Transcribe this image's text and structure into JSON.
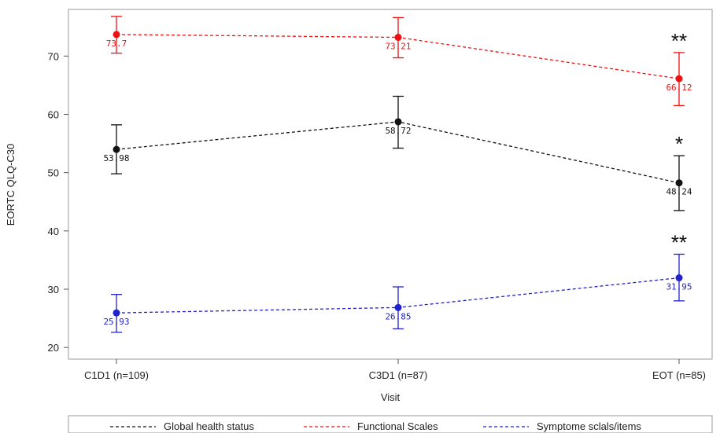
{
  "chart_data": {
    "type": "line",
    "xlabel": "Visit",
    "ylabel": "EORTC QLQ-C30",
    "categories": [
      "C1D1  (n=109)",
      "C3D1  (n=87)",
      "EOT  (n=85)"
    ],
    "ylim": [
      18,
      78
    ],
    "yticks": [
      20,
      30,
      40,
      50,
      60,
      70
    ],
    "grid": false,
    "legend_position": "bottom",
    "series": [
      {
        "name": "Global health status",
        "color": "#111111",
        "values": [
          53.98,
          58.72,
          48.24
        ],
        "labels": [
          "53.98",
          "58.72",
          "48.24"
        ],
        "ci_low": [
          49.8,
          54.2,
          43.5
        ],
        "ci_high": [
          58.2,
          63.1,
          52.9
        ],
        "annotations": [
          "",
          "",
          "*"
        ]
      },
      {
        "name": "Functional Scales",
        "color": "#ee1111",
        "values": [
          73.7,
          73.21,
          66.12
        ],
        "labels": [
          "73.7",
          "73.21",
          "66.12"
        ],
        "ci_low": [
          70.5,
          69.7,
          61.5
        ],
        "ci_high": [
          76.8,
          76.6,
          70.6
        ],
        "annotations": [
          "",
          "",
          "**"
        ]
      },
      {
        "name": "Symptome sclals/items",
        "color": "#2222cc",
        "values": [
          25.93,
          26.85,
          31.95
        ],
        "labels": [
          "25.93",
          "26.85",
          "31.95"
        ],
        "ci_low": [
          22.6,
          23.2,
          28.0
        ],
        "ci_high": [
          29.1,
          30.4,
          36.0
        ],
        "annotations": [
          "",
          "",
          "**"
        ]
      }
    ]
  }
}
